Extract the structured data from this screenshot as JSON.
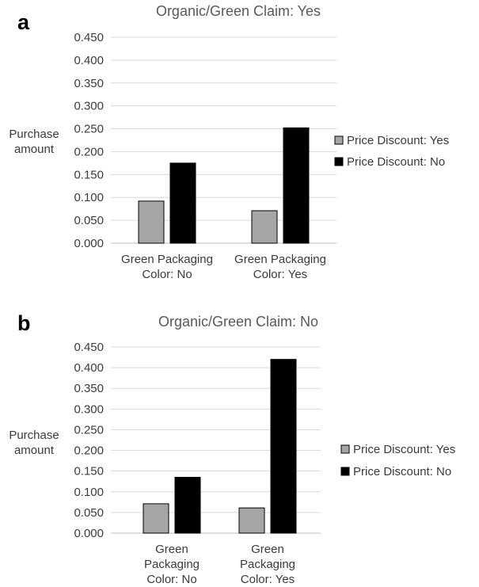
{
  "colors": {
    "discount_yes": "#a6a6a6",
    "discount_no": "#000000",
    "bar_stroke": "#000000",
    "grid": "#d9d9d9"
  },
  "chart_data": [
    {
      "panel": "a",
      "type": "bar",
      "title": "Organic/Green Claim: Yes",
      "ylabel": [
        "Purchase",
        "amount"
      ],
      "ylim": [
        0,
        0.45
      ],
      "yticks": [
        "0.000",
        "0.050",
        "0.100",
        "0.150",
        "0.200",
        "0.250",
        "0.300",
        "0.350",
        "0.400",
        "0.450"
      ],
      "grid": true,
      "legend_position": "right",
      "categories": [
        [
          "Green Packaging",
          "Color: No"
        ],
        [
          "Green Packaging",
          "Color: Yes"
        ]
      ],
      "series": [
        {
          "name": "Price Discount: Yes",
          "color": "#a6a6a6",
          "values": [
            0.092,
            0.071
          ]
        },
        {
          "name": "Price Discount: No",
          "color": "#000000",
          "values": [
            0.175,
            0.252
          ]
        }
      ]
    },
    {
      "panel": "b",
      "type": "bar",
      "title": "Organic/Green Claim: No",
      "ylabel": [
        "Purchase",
        "amount"
      ],
      "ylim": [
        0,
        0.45
      ],
      "yticks": [
        "0.000",
        "0.050",
        "0.100",
        "0.150",
        "0.200",
        "0.250",
        "0.300",
        "0.350",
        "0.400",
        "0.450"
      ],
      "grid": true,
      "legend_position": "right",
      "categories": [
        [
          "Green",
          "Packaging",
          "Color: No"
        ],
        [
          "Green",
          "Packaging",
          "Color: Yes"
        ]
      ],
      "series": [
        {
          "name": "Price Discount: Yes",
          "color": "#a6a6a6",
          "values": [
            0.071,
            0.061
          ]
        },
        {
          "name": "Price Discount: No",
          "color": "#000000",
          "values": [
            0.135,
            0.42
          ]
        }
      ]
    }
  ]
}
